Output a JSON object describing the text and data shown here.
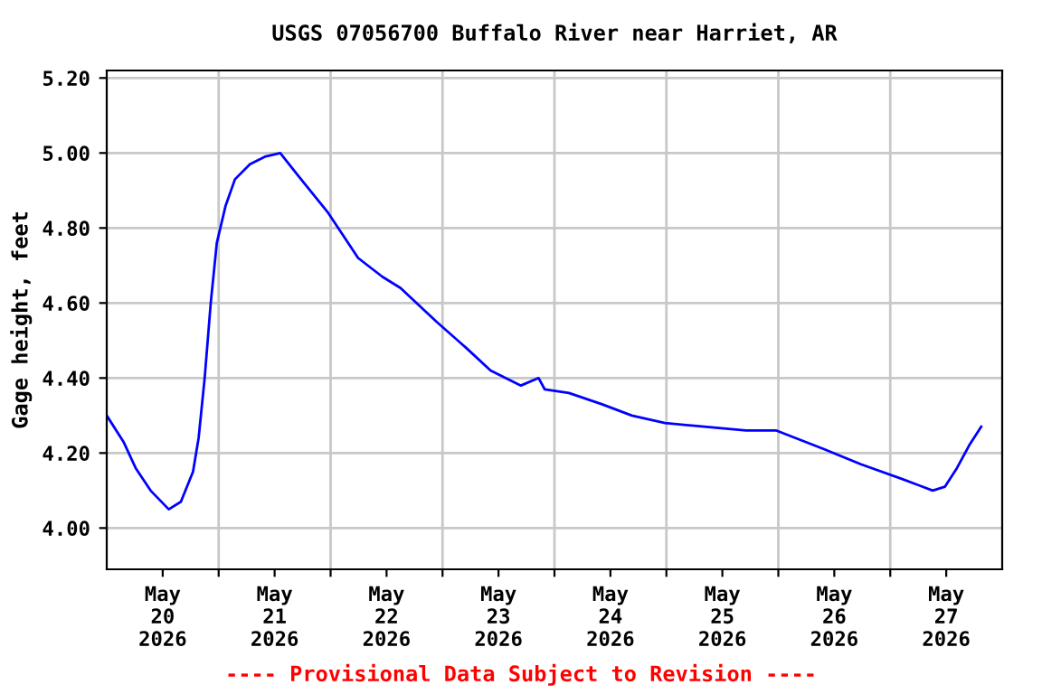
{
  "chart_data": {
    "type": "line",
    "title": "USGS 07056700 Buffalo River near Harriet, AR",
    "ylabel": "Gage height, feet",
    "annotations": [
      "---- Provisional Data Subject to Revision ----"
    ],
    "x": [
      "2026-05-20T00:00",
      "2026-05-20T03:36",
      "2026-05-20T06:12",
      "2026-05-20T09:24",
      "2026-05-20T13:18",
      "2026-05-20T15:54",
      "2026-05-20T18:30",
      "2026-05-20T19:42",
      "2026-05-20T21:00",
      "2026-05-20T22:18",
      "2026-05-20T23:36",
      "2026-05-21T01:30",
      "2026-05-21T03:30",
      "2026-05-21T06:42",
      "2026-05-21T09:54",
      "2026-05-21T13:12",
      "2026-05-21T17:00",
      "2026-05-21T23:30",
      "2026-05-22T05:54",
      "2026-05-22T11:06",
      "2026-05-22T15:00",
      "2026-05-22T22:42",
      "2026-05-23T05:06",
      "2026-05-23T10:18",
      "2026-05-23T16:48",
      "2026-05-23T20:36",
      "2026-05-23T21:54",
      "2026-05-24T03:06",
      "2026-05-24T10:12",
      "2026-05-24T16:36",
      "2026-05-24T23:42",
      "2026-05-25T17:06",
      "2026-05-25T23:36",
      "2026-05-26T09:54",
      "2026-05-26T17:42",
      "2026-05-27T02:42",
      "2026-05-27T09:06",
      "2026-05-27T11:42",
      "2026-05-27T14:18",
      "2026-05-27T16:54",
      "2026-05-27T19:30"
    ],
    "series": [
      {
        "color": "#0000ff",
        "values": [
          4.3,
          4.23,
          4.16,
          4.1,
          4.05,
          4.07,
          4.15,
          4.24,
          4.4,
          4.6,
          4.76,
          4.86,
          4.93,
          4.97,
          4.99,
          5.0,
          4.94,
          4.84,
          4.72,
          4.67,
          4.64,
          4.55,
          4.48,
          4.42,
          4.38,
          4.4,
          4.37,
          4.36,
          4.33,
          4.3,
          4.28,
          4.26,
          4.26,
          4.21,
          4.17,
          4.13,
          4.1,
          4.11,
          4.16,
          4.22,
          4.27
        ]
      }
    ],
    "xlim": [
      "2026-05-20T00:00",
      "2026-05-28T00:00"
    ],
    "xticks": [
      {
        "value": "2026-05-20T12:00",
        "label": "May\n20\n2026"
      },
      {
        "value": "2026-05-21T12:00",
        "label": "May\n21\n2026"
      },
      {
        "value": "2026-05-22T12:00",
        "label": "May\n22\n2026"
      },
      {
        "value": "2026-05-23T12:00",
        "label": "May\n23\n2026"
      },
      {
        "value": "2026-05-24T12:00",
        "label": "May\n24\n2026"
      },
      {
        "value": "2026-05-25T12:00",
        "label": "May\n25\n2026"
      },
      {
        "value": "2026-05-26T12:00",
        "label": "May\n26\n2026"
      },
      {
        "value": "2026-05-27T12:00",
        "label": "May\n27\n2026"
      },
      {
        "value": "2026-05-21T00:00",
        "label": null
      },
      {
        "value": "2026-05-22T00:00",
        "label": null
      },
      {
        "value": "2026-05-23T00:00",
        "label": null
      },
      {
        "value": "2026-05-24T00:00",
        "label": null
      },
      {
        "value": "2026-05-25T00:00",
        "label": null
      },
      {
        "value": "2026-05-26T00:00",
        "label": null
      },
      {
        "value": "2026-05-27T00:00",
        "label": null
      }
    ],
    "ylim": [
      3.89,
      5.22
    ],
    "yticks": [
      {
        "value": 4.0,
        "label": "4.00"
      },
      {
        "value": 4.2,
        "label": "4.20"
      },
      {
        "value": 4.4,
        "label": "4.40"
      },
      {
        "value": 4.6,
        "label": "4.60"
      },
      {
        "value": 4.8,
        "label": "4.80"
      },
      {
        "value": 5.0,
        "label": "5.00"
      },
      {
        "value": 5.2,
        "label": "5.20"
      }
    ],
    "grid": true,
    "line_style": "solid",
    "marker": "none"
  }
}
